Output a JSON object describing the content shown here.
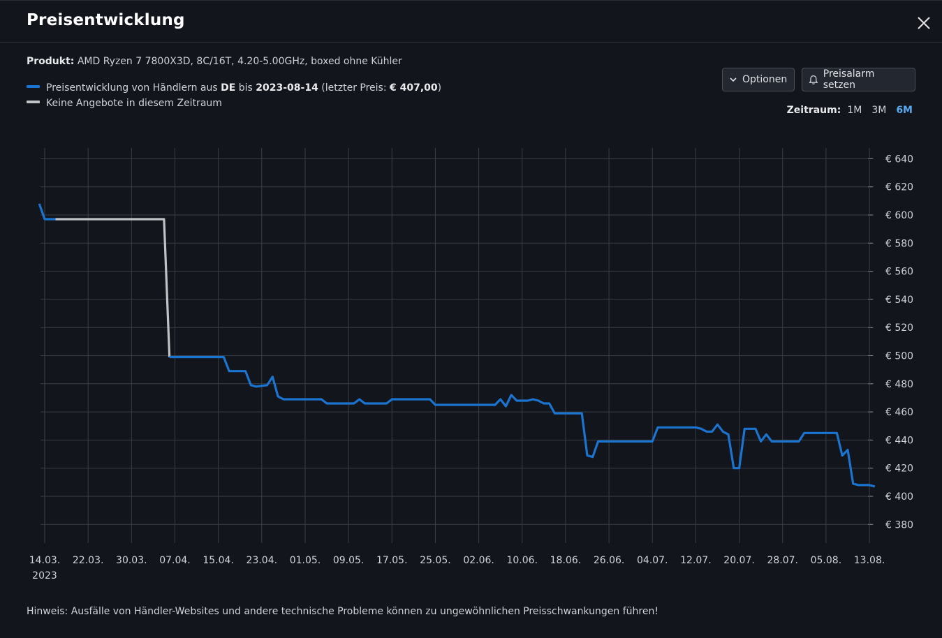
{
  "dialog": {
    "title": "Preisentwicklung",
    "product_label": "Produkt:",
    "product_name": "AMD Ryzen 7 7800X3D, 8C/16T, 4.20-5.00GHz, boxed ohne Kühler",
    "legend_price_prefix": "Preisentwicklung von Händlern aus ",
    "legend_country": "DE",
    "legend_mid": " bis ",
    "legend_date": "2023-08-14",
    "legend_last_prefix": " (letzter Preis: ",
    "legend_last_price": "€ 407,00",
    "legend_last_suffix": ")",
    "legend_none": "Keine Angebote in diesem Zeitraum",
    "options_button": "Optionen",
    "alarm_button": "Preisalarm setzen",
    "zeitraum_label": "Zeitraum:",
    "zeitraum_options": [
      "1M",
      "3M",
      "6M"
    ],
    "zeitraum_selected": "6M",
    "hint": "Hinweis: Ausfälle von Händler-Websites und andere technische Probleme können zu ungewöhnlichen Preisschwankungen führen!"
  },
  "colors": {
    "price_line": "#1b74cf",
    "no_offer_line": "#c0c2c5",
    "grid": "#3a3e46",
    "background": "#12151c"
  },
  "icons": [
    "close-icon",
    "chevron-down-icon",
    "bell-icon"
  ],
  "chart_data": {
    "type": "line",
    "title": "",
    "xlabel": "",
    "ylabel": "",
    "x_tick_labels": [
      "14.03.",
      "22.03.",
      "30.03.",
      "07.04.",
      "15.04.",
      "23.04.",
      "01.05.",
      "09.05.",
      "17.05.",
      "25.05.",
      "02.06.",
      "10.06.",
      "18.06.",
      "26.06.",
      "04.07.",
      "12.07.",
      "20.07.",
      "28.07.",
      "05.08.",
      "13.08."
    ],
    "x_year_label": "2023",
    "y_ticks": [
      380,
      400,
      420,
      440,
      460,
      480,
      500,
      520,
      540,
      560,
      580,
      600,
      620,
      640
    ],
    "y_tick_format": "€ {v}",
    "ylim": [
      366,
      647
    ],
    "xlim": [
      "2023-03-14",
      "2023-08-14"
    ],
    "y_axis_position": "right",
    "grid": true,
    "series": [
      {
        "name": "Preisentwicklung von Händlern aus DE",
        "color_key": "price_line",
        "segments": [
          [
            [
              "2023-03-13",
              608
            ],
            [
              "2023-03-14",
              597
            ],
            [
              "2023-03-16",
              597
            ]
          ]
        ]
      },
      {
        "name": "Keine Angebote in diesem Zeitraum",
        "color_key": "no_offer_line",
        "segments": [
          [
            [
              "2023-03-16",
              597
            ],
            [
              "2023-04-05",
              597
            ],
            [
              "2023-04-06",
              499
            ]
          ]
        ]
      },
      {
        "name": "Preisentwicklung von Händlern aus DE",
        "color_key": "price_line",
        "segments": [
          [
            [
              "2023-04-06",
              499
            ],
            [
              "2023-04-16",
              499
            ],
            [
              "2023-04-17",
              489
            ],
            [
              "2023-04-20",
              489
            ],
            [
              "2023-04-21",
              479
            ],
            [
              "2023-04-22",
              478
            ],
            [
              "2023-04-24",
              479
            ],
            [
              "2023-04-25",
              485
            ],
            [
              "2023-04-26",
              471
            ],
            [
              "2023-04-27",
              469
            ],
            [
              "2023-05-04",
              469
            ],
            [
              "2023-05-05",
              466
            ],
            [
              "2023-05-09",
              466
            ],
            [
              "2023-05-10",
              466
            ],
            [
              "2023-05-11",
              469
            ],
            [
              "2023-05-12",
              466
            ],
            [
              "2023-05-16",
              466
            ],
            [
              "2023-05-17",
              469
            ],
            [
              "2023-05-24",
              469
            ],
            [
              "2023-05-25",
              465
            ],
            [
              "2023-06-05",
              465
            ],
            [
              "2023-06-06",
              469
            ],
            [
              "2023-06-07",
              464
            ],
            [
              "2023-06-08",
              472
            ],
            [
              "2023-06-09",
              468
            ],
            [
              "2023-06-11",
              468
            ],
            [
              "2023-06-12",
              469
            ],
            [
              "2023-06-13",
              468
            ],
            [
              "2023-06-14",
              466
            ],
            [
              "2023-06-15",
              466
            ],
            [
              "2023-06-16",
              459
            ],
            [
              "2023-06-21",
              459
            ],
            [
              "2023-06-22",
              429
            ],
            [
              "2023-06-23",
              428
            ],
            [
              "2023-06-24",
              439
            ],
            [
              "2023-07-04",
              439
            ],
            [
              "2023-07-05",
              449
            ],
            [
              "2023-07-12",
              449
            ],
            [
              "2023-07-13",
              448
            ],
            [
              "2023-07-14",
              446
            ],
            [
              "2023-07-15",
              446
            ],
            [
              "2023-07-16",
              451
            ],
            [
              "2023-07-17",
              446
            ],
            [
              "2023-07-18",
              444
            ],
            [
              "2023-07-19",
              420
            ],
            [
              "2023-07-20",
              420
            ],
            [
              "2023-07-21",
              448
            ],
            [
              "2023-07-23",
              448
            ],
            [
              "2023-07-24",
              439
            ],
            [
              "2023-07-25",
              444
            ],
            [
              "2023-07-26",
              439
            ],
            [
              "2023-07-31",
              439
            ],
            [
              "2023-08-01",
              445
            ],
            [
              "2023-08-07",
              445
            ],
            [
              "2023-08-08",
              429
            ],
            [
              "2023-08-09",
              433
            ],
            [
              "2023-08-10",
              409
            ],
            [
              "2023-08-11",
              408
            ],
            [
              "2023-08-13",
              408
            ],
            [
              "2023-08-14",
              407
            ]
          ]
        ]
      }
    ]
  }
}
